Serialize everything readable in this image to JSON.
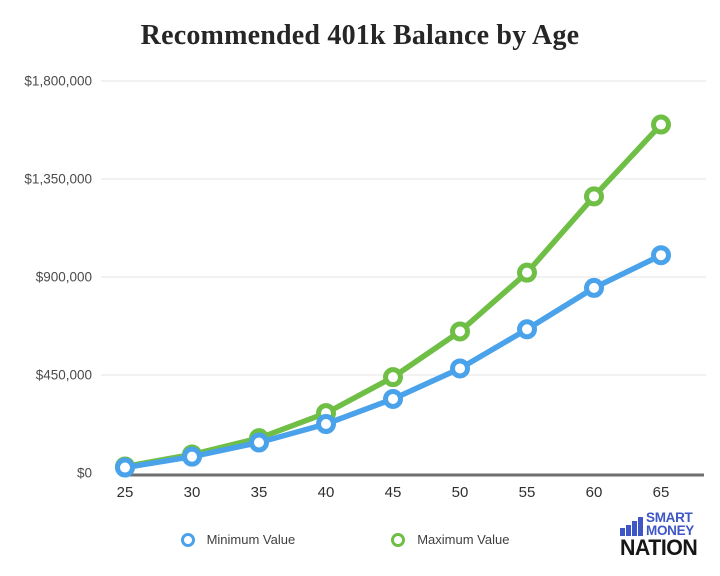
{
  "chart": {
    "title": "Recommended 401k Balance by Age"
  },
  "chart_data": {
    "type": "line",
    "title": "Recommended 401k Balance by Age",
    "categories": [
      "25",
      "30",
      "35",
      "40",
      "45",
      "50",
      "55",
      "60",
      "65"
    ],
    "xlabel": "",
    "ylabel": "",
    "ylim": [
      0,
      1800000
    ],
    "grid": "horizontal",
    "legend_position": "bottom",
    "marker": "open-circle",
    "yticks": [
      {
        "value": 0,
        "label": "$0"
      },
      {
        "value": 450000,
        "label": "$450,000"
      },
      {
        "value": 900000,
        "label": "$900,000"
      },
      {
        "value": 1350000,
        "label": "$1,350,000"
      },
      {
        "value": 1800000,
        "label": "$1,800,000"
      }
    ],
    "series": [
      {
        "name": "Minimum Value",
        "color": "#4aa2ea",
        "values": [
          25000,
          75000,
          140000,
          225000,
          340000,
          480000,
          660000,
          850000,
          1000000
        ]
      },
      {
        "name": "Maximum Value",
        "color": "#6fbe46",
        "values": [
          30000,
          85000,
          160000,
          275000,
          440000,
          650000,
          920000,
          1270000,
          1600000
        ]
      }
    ]
  },
  "legend": {
    "items": [
      {
        "label": "Minimum Value",
        "color": "#4aa2ea"
      },
      {
        "label": "Maximum Value",
        "color": "#6fbe46"
      }
    ]
  },
  "logo": {
    "word1": "SMART",
    "word2": "MONEY",
    "word3": "NATION",
    "icon": "bar-chart-icon",
    "blue": "#3f56c6",
    "black": "#161616"
  },
  "style": {
    "gridline_color": "#efeded",
    "axis_color": "#6f6f6f",
    "ytick_color": "#4b4b4b",
    "xtick_color": "#303030"
  }
}
